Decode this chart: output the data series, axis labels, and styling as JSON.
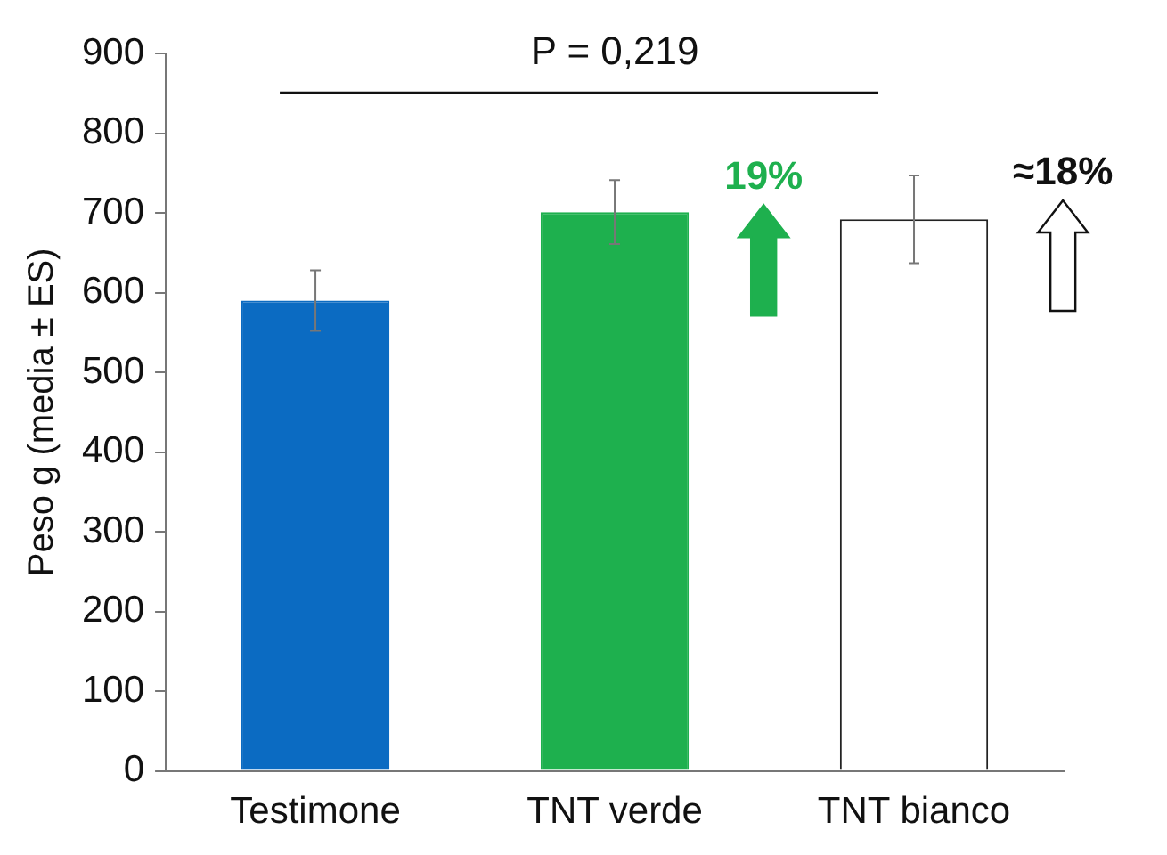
{
  "chart_data": {
    "type": "bar",
    "ylabel": "Peso g (media ± ES)",
    "categories": [
      "Testimone",
      "TNT verde",
      "TNT bianco"
    ],
    "values": [
      590,
      701,
      692
    ],
    "errors": [
      38,
      40,
      55
    ],
    "colors": [
      "#0b6bc2",
      "#1eb04e",
      "#ffffff"
    ],
    "ylim": [
      0,
      900
    ],
    "yticks": [
      0,
      100,
      200,
      300,
      400,
      500,
      600,
      700,
      800,
      900
    ],
    "grid": false,
    "annotations": [
      "P = 0,219",
      "19%",
      "≈18%"
    ]
  }
}
